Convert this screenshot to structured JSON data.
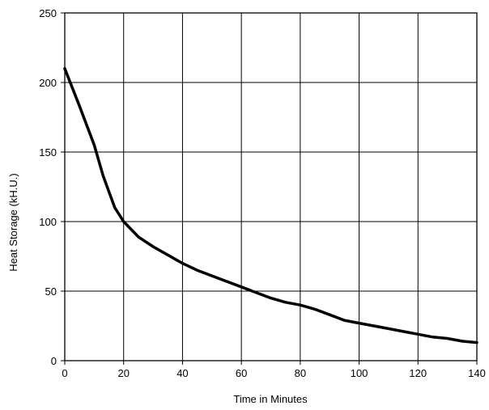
{
  "chart_data": {
    "type": "line",
    "title": "",
    "xlabel": "Time in Minutes",
    "ylabel": "Heat Storage (kH.U.)",
    "xlim": [
      0,
      140
    ],
    "ylim": [
      0,
      250
    ],
    "xticks": [
      0,
      20,
      40,
      60,
      80,
      100,
      120,
      140
    ],
    "yticks": [
      0,
      50,
      100,
      150,
      200,
      250
    ],
    "xtick_labels": [
      "0",
      "20",
      "40",
      "60",
      "80",
      "100",
      "120",
      "140"
    ],
    "ytick_labels": [
      "0",
      "50",
      "100",
      "150",
      "200",
      "250"
    ],
    "grid": true,
    "legend": "none",
    "line_color": "#000000",
    "series": [
      {
        "x": [
          0,
          5,
          10,
          13,
          17,
          20,
          25,
          30,
          35,
          40,
          45,
          50,
          55,
          60,
          65,
          70,
          75,
          80,
          85,
          90,
          95,
          100,
          105,
          110,
          115,
          120,
          125,
          130,
          135,
          140
        ],
        "y": [
          210,
          183,
          155,
          133,
          110,
          100,
          89,
          82,
          76,
          70,
          65,
          61,
          57,
          53,
          49,
          45,
          42,
          40,
          37,
          33,
          29,
          27,
          25,
          23,
          21,
          19,
          17,
          16,
          14,
          13
        ]
      }
    ]
  }
}
